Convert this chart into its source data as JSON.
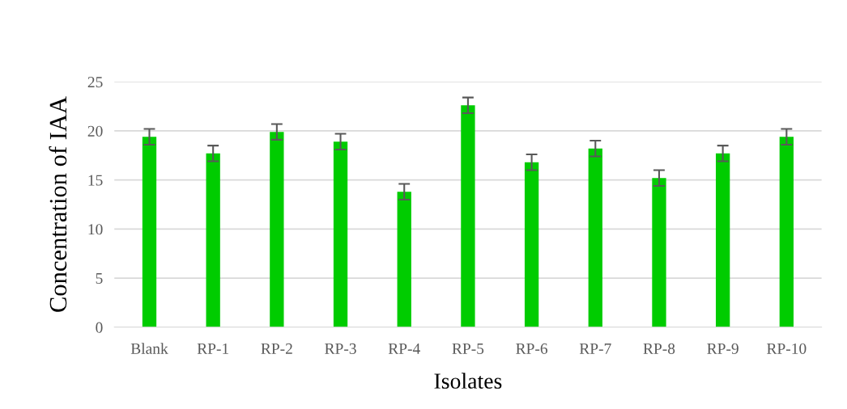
{
  "chart_data": {
    "type": "bar",
    "xlabel": "Isolates",
    "ylabel": "Concentration of IAA",
    "categories": [
      "Blank",
      "RP-1",
      "RP-2",
      "RP-3",
      "RP-4",
      "RP-5",
      "RP-6",
      "RP-7",
      "RP-8",
      "RP-9",
      "RP-10"
    ],
    "values": [
      19.4,
      17.7,
      19.9,
      18.9,
      13.8,
      22.6,
      16.8,
      18.2,
      15.2,
      17.7,
      19.4
    ],
    "errors": [
      0.8,
      0.8,
      0.8,
      0.8,
      0.8,
      0.8,
      0.8,
      0.8,
      0.8,
      0.8,
      0.8
    ],
    "color": "#00cc00",
    "ylim": [
      0,
      25
    ],
    "yticks": [
      0,
      5,
      10,
      15,
      20,
      25
    ],
    "grid": "y"
  }
}
